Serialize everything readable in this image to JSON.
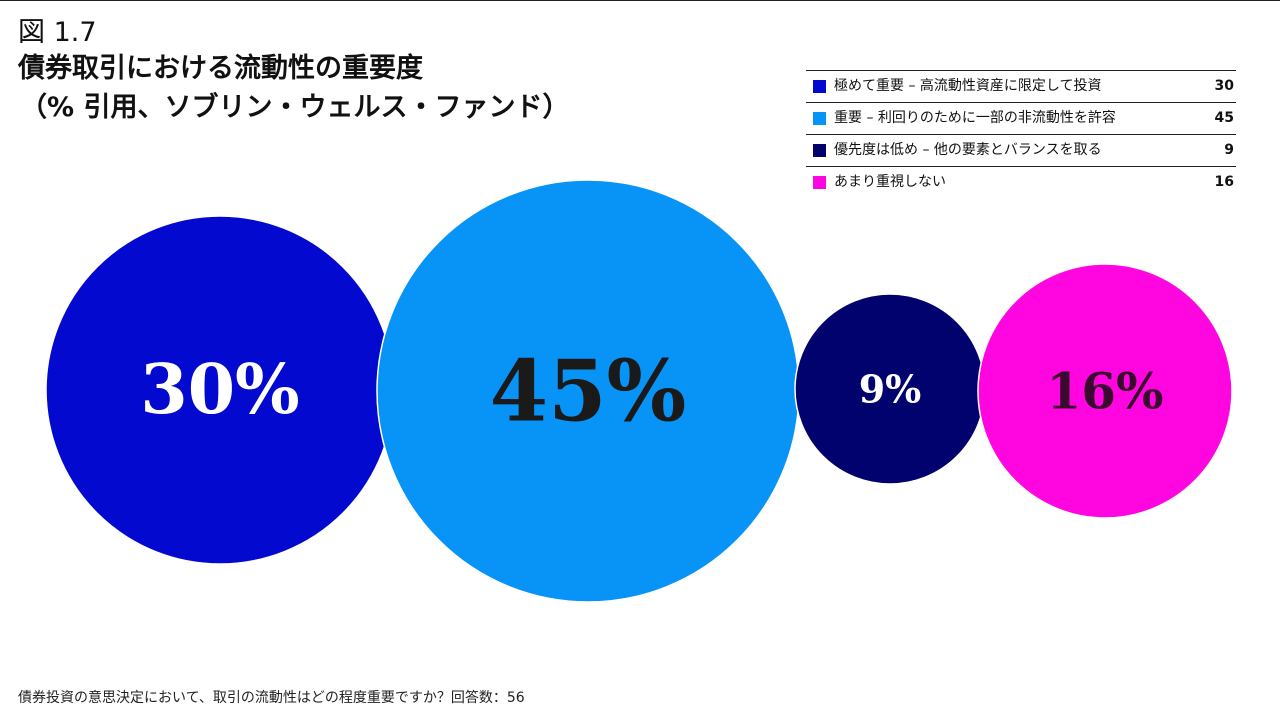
{
  "figure_label": "図 1.7",
  "title_line1": "債券取引における流動性の重要度",
  "title_line2": "（% 引用、ソブリン・ウェルス・ファンド）",
  "footnote": "債券投資の意思決定において、取引の流動性はどの程度重要ですか？回答数：56",
  "chart_data": {
    "type": "bubble",
    "categories": [
      "極めて重要 – 高流動性資産に限定して投資",
      "重要 – 利回りのために一部の非流動性を許容",
      "優先度は低め – 他の要素とバランスを取る",
      "あまり重視しない"
    ],
    "values": [
      30,
      45,
      9,
      16
    ],
    "value_labels": [
      "30%",
      "45%",
      "9%",
      "16%"
    ],
    "colors": [
      "#0309cf",
      "#0794f6",
      "#02026f",
      "#ff06e0"
    ],
    "label_colors": [
      "#ffffff",
      "#1a1a1a",
      "#ffffff",
      "#3a0a2e"
    ],
    "legend_placement": "top-right"
  }
}
